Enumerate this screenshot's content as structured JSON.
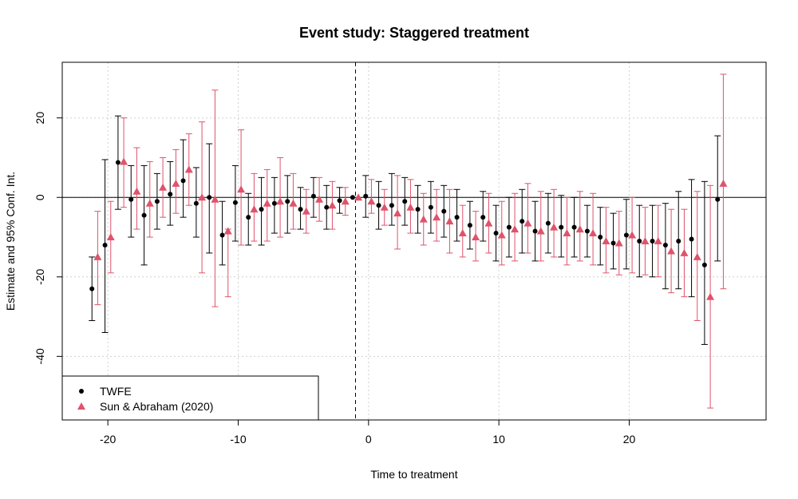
{
  "chart_data": {
    "type": "scatter",
    "title": "Event study: Staggered treatment",
    "xlabel": "Time to treatment",
    "ylabel": "Estimate and 95% Conf. Int.",
    "xlim": [
      -23.5,
      30.5
    ],
    "ylim": [
      -56,
      34
    ],
    "xticks": [
      -20,
      -10,
      0,
      10,
      20
    ],
    "yticks": [
      -40,
      -20,
      0,
      20
    ],
    "grid": true,
    "reference_line_y": 0,
    "reference_line_x": -1,
    "legend_position": "bottom-left",
    "colors": {
      "twfe": "#000000",
      "sa": "#DF536B"
    },
    "series": [
      {
        "name": "TWFE",
        "marker": "circle",
        "x": [
          -21,
          -20,
          -19,
          -18,
          -17,
          -16,
          -15,
          -14,
          -13,
          -12,
          -11,
          -10,
          -9,
          -8,
          -7,
          -6,
          -5,
          -4,
          -3,
          -2,
          -1,
          0,
          1,
          2,
          3,
          4,
          5,
          6,
          7,
          8,
          9,
          10,
          11,
          12,
          13,
          14,
          15,
          16,
          17,
          18,
          19,
          20,
          21,
          22,
          23,
          24,
          25,
          26,
          27
        ],
        "y": [
          -23,
          -12,
          8.8,
          -0.5,
          -4.5,
          -1,
          0.8,
          4.2,
          -1.5,
          0,
          -9.5,
          -1.3,
          -5,
          -3,
          -1.5,
          -1,
          -3,
          0.3,
          -2.5,
          -0.8,
          0,
          0.3,
          -2,
          -2,
          -1,
          -3,
          -2.5,
          -3.5,
          -5,
          -7,
          -5,
          -9,
          -7.5,
          -6,
          -8.5,
          -6.5,
          -7.5,
          -7.5,
          -8.5,
          -10,
          -11.5,
          -9.5,
          -11,
          -11,
          -12,
          -11,
          -10.5,
          -17,
          -0.5
        ],
        "lo": [
          -31,
          -34,
          -3,
          -10,
          -17,
          -8,
          -7,
          -5,
          -10,
          -14,
          -17,
          -11,
          -12,
          -12,
          -9,
          -9,
          -8,
          -5,
          -8,
          -4,
          0,
          -5,
          -8,
          -7,
          -7,
          -9,
          -9,
          -10,
          -11,
          -13,
          -11,
          -16,
          -15,
          -14,
          -16,
          -14,
          -15,
          -15,
          -15,
          -17,
          -18,
          -18,
          -20,
          -20,
          -23,
          -23,
          -25,
          -37,
          -16
        ],
        "hi": [
          -15,
          9.5,
          20.5,
          8,
          8,
          6,
          9,
          14.5,
          7.5,
          13.5,
          -1,
          8,
          1,
          5,
          5,
          5.5,
          2.5,
          5,
          3,
          2.5,
          0,
          5.5,
          4,
          6,
          5,
          3,
          4,
          3,
          2,
          -1,
          1.5,
          -2,
          0,
          2,
          -1,
          1,
          0.5,
          0,
          -2,
          -2.5,
          -4,
          -0.5,
          -2,
          -2,
          -1.5,
          1.5,
          4.5,
          4,
          15.5
        ]
      },
      {
        "name": "Sun & Abraham (2020)",
        "marker": "triangle",
        "x": [
          -21,
          -20,
          -19,
          -18,
          -17,
          -16,
          -15,
          -14,
          -13,
          -12,
          -11,
          -10,
          -9,
          -8,
          -7,
          -6,
          -5,
          -4,
          -3,
          -2,
          -1,
          0,
          1,
          2,
          3,
          4,
          5,
          6,
          7,
          8,
          9,
          10,
          11,
          12,
          13,
          14,
          15,
          16,
          17,
          18,
          19,
          20,
          21,
          22,
          23,
          24,
          25,
          26,
          27
        ],
        "y": [
          -15,
          -10,
          9,
          1.5,
          -1.5,
          2.5,
          3.5,
          7,
          0,
          -0.5,
          -8.5,
          2,
          -3,
          -1.5,
          -1,
          -1.5,
          -3.5,
          -0.5,
          -2,
          -1,
          0,
          -1,
          -2.5,
          -4,
          -2.5,
          -5.5,
          -5,
          -6,
          -9,
          -10,
          -6.5,
          -9.5,
          -8,
          -6.5,
          -8.5,
          -7.5,
          -9,
          -8,
          -9,
          -11,
          -11.5,
          -9.5,
          -11,
          -11,
          -13.5,
          -14,
          -15,
          -25,
          3.5
        ],
        "lo": [
          -27,
          -19,
          -2.5,
          -8,
          -10,
          -5,
          -4,
          -2,
          -19,
          -27.5,
          -25,
          -12,
          -11,
          -11,
          -10,
          -8,
          -9,
          -6,
          -8,
          -4.5,
          0,
          -4,
          -7,
          -13,
          -9,
          -12,
          -11,
          -14,
          -15,
          -16,
          -14,
          -17,
          -16,
          -14,
          -16,
          -15,
          -17,
          -16,
          -17,
          -19,
          -19.5,
          -19,
          -19.5,
          -20,
          -24,
          -25,
          -31,
          -53,
          -23
        ],
        "hi": [
          -3.5,
          -1,
          20,
          12.5,
          9,
          10,
          12,
          16,
          19,
          27,
          -8,
          17,
          6,
          7,
          10,
          6,
          2,
          5,
          4,
          2.5,
          0,
          4.5,
          2,
          5.5,
          4.5,
          1,
          2,
          2,
          -2,
          -3.5,
          1,
          -1,
          1,
          3.5,
          1.5,
          2,
          0,
          1.5,
          1,
          -2.5,
          -3.5,
          0,
          -2.5,
          -2,
          -3,
          -3,
          1.5,
          3,
          31
        ]
      }
    ]
  }
}
